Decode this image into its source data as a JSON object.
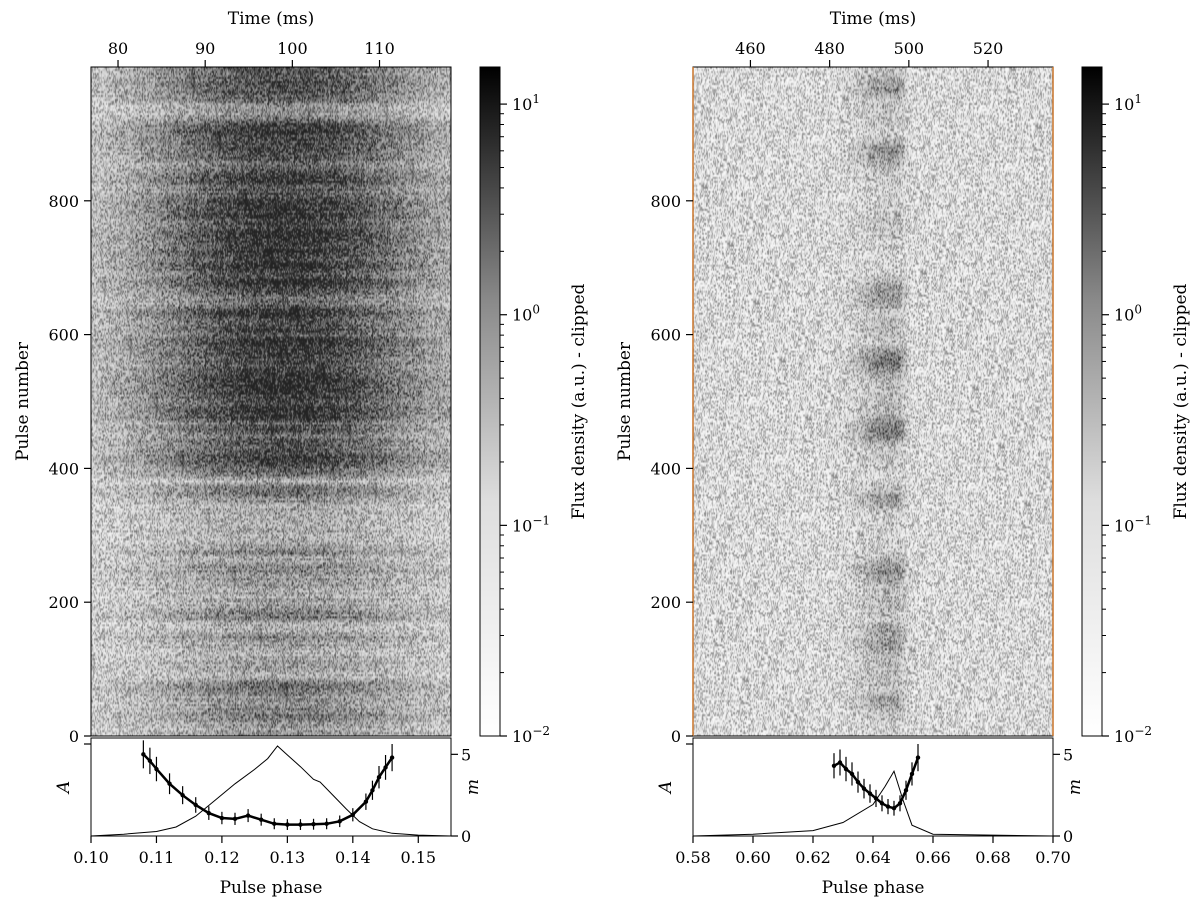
{
  "chart_data": [
    {
      "type": "heatmap",
      "panel": "left",
      "title": "",
      "top_axis": {
        "label": "Time (ms)",
        "ticks": [
          80,
          90,
          100,
          110
        ],
        "range": [
          76.9,
          118.2
        ]
      },
      "heatmap": {
        "ylabel": "Pulse number",
        "yticks": [
          0,
          200,
          400,
          600,
          800
        ],
        "ylim": [
          0,
          1000
        ],
        "phase_range": [
          0.1,
          0.155
        ],
        "emission_center_phase": 0.1295,
        "emission_halfwidth_phase": 0.016,
        "cmap": "Greys",
        "scale": "log"
      },
      "colorbar": {
        "label": "Flux density (a.u.) - clipped",
        "ticks": [
          "10^{-2}",
          "10^{-1}",
          "10^{0}",
          "10^{1}"
        ],
        "range": [
          0.01,
          15
        ]
      },
      "profile": {
        "xlabel": "Pulse phase",
        "xticks": [
          "0.10",
          "0.11",
          "0.12",
          "0.13",
          "0.14",
          "0.15"
        ],
        "xlim": [
          0.1,
          0.155
        ],
        "left_ylabel": "A",
        "right_ylabel": "m",
        "right_yticks": [
          0,
          5
        ],
        "right_ylim": [
          0,
          6
        ],
        "series": [
          {
            "role": "profile",
            "x": [
              0.1,
              0.105,
              0.11,
              0.113,
              0.116,
              0.119,
              0.122,
              0.125,
              0.127,
              0.1285,
              0.13,
              0.132,
              0.134,
              0.135,
              0.137,
              0.139,
              0.141,
              0.143,
              0.146,
              0.15,
              0.155
            ],
            "y": [
              0.0,
              0.02,
              0.05,
              0.1,
              0.22,
              0.4,
              0.58,
              0.74,
              0.86,
              1.0,
              0.9,
              0.77,
              0.63,
              0.6,
              0.45,
              0.3,
              0.16,
              0.08,
              0.03,
              0.01,
              0.0
            ]
          },
          {
            "role": "modulation_index",
            "x": [
              0.108,
              0.109,
              0.11,
              0.112,
              0.114,
              0.116,
              0.118,
              0.12,
              0.122,
              0.124,
              0.126,
              0.128,
              0.13,
              0.132,
              0.134,
              0.136,
              0.138,
              0.14,
              0.142,
              0.143,
              0.144,
              0.145,
              0.146
            ],
            "y": [
              5.0,
              4.6,
              4.1,
              3.2,
              2.5,
              1.9,
              1.4,
              1.1,
              1.05,
              1.25,
              1.0,
              0.75,
              0.7,
              0.7,
              0.72,
              0.75,
              0.9,
              1.3,
              2.1,
              2.8,
              3.6,
              4.2,
              4.8
            ]
          }
        ]
      }
    },
    {
      "type": "heatmap",
      "panel": "right",
      "title": "",
      "top_axis": {
        "label": "Time (ms)",
        "ticks": [
          460,
          480,
          500,
          520
        ],
        "range": [
          445.5,
          536.4
        ]
      },
      "heatmap": {
        "ylabel": "Pulse number",
        "yticks": [
          0,
          200,
          400,
          600,
          800
        ],
        "ylim": [
          0,
          1000
        ],
        "phase_range": [
          0.58,
          0.7
        ],
        "emission_center_phase": 0.6455,
        "emission_halfwidth_phase": 0.0085,
        "cmap": "Greys",
        "scale": "log"
      },
      "colorbar": {
        "label": "Flux density (a.u.) - clipped",
        "ticks": [
          "10^{-2}",
          "10^{-1}",
          "10^{0}",
          "10^{1}"
        ],
        "range": [
          0.01,
          15
        ]
      },
      "profile": {
        "xlabel": "Pulse phase",
        "xticks": [
          "0.58",
          "0.60",
          "0.62",
          "0.64",
          "0.66",
          "0.68",
          "0.70"
        ],
        "xlim": [
          0.58,
          0.7
        ],
        "left_ylabel": "A",
        "right_ylabel": "m",
        "right_yticks": [
          0,
          5
        ],
        "right_ylim": [
          0,
          6
        ],
        "series": [
          {
            "role": "profile",
            "x": [
              0.58,
              0.6,
              0.62,
              0.63,
              0.64,
              0.644,
              0.647,
              0.65,
              0.653,
              0.66,
              0.7
            ],
            "y": [
              0.0,
              0.02,
              0.06,
              0.15,
              0.35,
              0.55,
              0.72,
              0.4,
              0.12,
              0.02,
              0.0
            ]
          },
          {
            "role": "modulation_index",
            "x": [
              0.627,
              0.629,
              0.631,
              0.633,
              0.635,
              0.637,
              0.639,
              0.641,
              0.643,
              0.645,
              0.647,
              0.649,
              0.651,
              0.653,
              0.655
            ],
            "y": [
              4.3,
              4.5,
              4.1,
              3.8,
              3.3,
              2.9,
              2.6,
              2.3,
              2.0,
              1.8,
              1.7,
              2.0,
              2.8,
              3.8,
              4.8
            ]
          }
        ]
      }
    }
  ]
}
